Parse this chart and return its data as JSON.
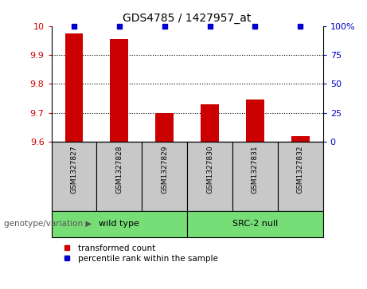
{
  "title": "GDS4785 / 1427957_at",
  "samples": [
    "GSM1327827",
    "GSM1327828",
    "GSM1327829",
    "GSM1327830",
    "GSM1327831",
    "GSM1327832"
  ],
  "bar_values": [
    9.975,
    9.955,
    9.7,
    9.73,
    9.745,
    9.62
  ],
  "ylim_left": [
    9.6,
    10.0
  ],
  "ylim_right": [
    0,
    100
  ],
  "yticks_left": [
    9.6,
    9.7,
    9.8,
    9.9,
    10.0
  ],
  "ytick_labels_left": [
    "9.6",
    "9.7",
    "9.8",
    "9.9",
    "10"
  ],
  "yticks_right": [
    0,
    25,
    50,
    75,
    100
  ],
  "ytick_labels_right": [
    "0",
    "25",
    "50",
    "75",
    "100%"
  ],
  "bar_color": "#cc0000",
  "percentile_color": "#0000cc",
  "groups": [
    {
      "label": "wild type",
      "indices": [
        0,
        1,
        2
      ],
      "color": "#77dd77"
    },
    {
      "label": "SRC-2 null",
      "indices": [
        3,
        4,
        5
      ],
      "color": "#77dd77"
    }
  ],
  "group_label_prefix": "genotype/variation",
  "legend_bar_label": "transformed count",
  "legend_pct_label": "percentile rank within the sample",
  "sample_box_color": "#c8c8c8",
  "dotted_grid_color": "#000000",
  "background_color": "#ffffff",
  "left_tick_color": "#cc0000",
  "right_tick_color": "#0000cc",
  "bar_width": 0.4
}
